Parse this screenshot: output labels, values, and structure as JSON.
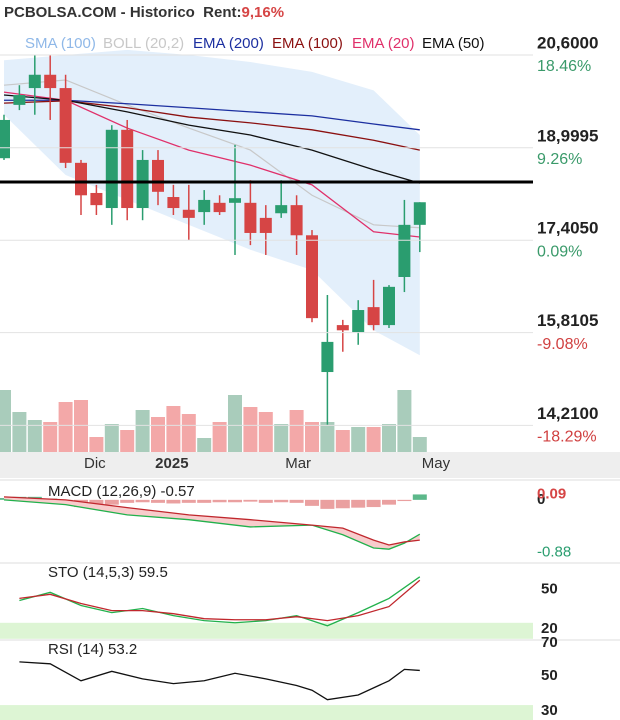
{
  "chart_data": [
    {
      "type": "candlestick",
      "title": "PCBOLSA.COM - Historico  Rent:",
      "subtitle": "9,16%",
      "xticks": [
        {
          "value": 5.9,
          "label": "Dic"
        },
        {
          "value": 10.9,
          "label": "2025"
        },
        {
          "value": 19.1,
          "label": "Mar"
        },
        {
          "value": 28.05,
          "label": "May"
        }
      ],
      "ylim": [
        13.75,
        21.55
      ],
      "yticks": [
        {
          "value": 20.6,
          "label": "20,6000"
        },
        {
          "value": 18.9995,
          "label": "18,9995"
        },
        {
          "value": 17.405,
          "label": "17,4050"
        },
        {
          "value": 15.8105,
          "label": "15,8105"
        },
        {
          "value": 14.21,
          "label": "14,2100"
        }
      ],
      "y2lim": [
        -20.93,
        23.92
      ],
      "y2ticks": [
        {
          "value": 18.46,
          "label": "18.46%"
        },
        {
          "value": 9.26,
          "label": "9.26%"
        },
        {
          "value": 0.09,
          "label": "0.09%"
        },
        {
          "value": -9.08,
          "label": "-9.08%"
        },
        {
          "value": -18.29,
          "label": "-18.29%"
        }
      ],
      "open": [
        18.82,
        19.74,
        20.03,
        20.26,
        20.03,
        18.74,
        18.22,
        17.96,
        19.31,
        17.96,
        18.79,
        18.15,
        17.93,
        17.89,
        18.05,
        18.05,
        18.05,
        17.79,
        17.87,
        18.01,
        17.49,
        15.13,
        15.94,
        15.82,
        16.25,
        15.94,
        16.77,
        17.67
      ],
      "high": [
        19.57,
        20.08,
        20.6,
        20.6,
        20.26,
        18.79,
        18.36,
        19.39,
        19.48,
        18.96,
        18.96,
        18.36,
        18.36,
        18.27,
        18.18,
        19.05,
        18.44,
        18.01,
        18.44,
        18.18,
        17.58,
        16.46,
        16.03,
        16.37,
        16.72,
        16.63,
        18.1,
        18.06
      ],
      "low": [
        18.79,
        19.65,
        19.57,
        19.48,
        18.65,
        17.84,
        17.84,
        17.67,
        17.75,
        17.75,
        18.01,
        17.84,
        17.41,
        17.67,
        17.84,
        17.15,
        17.32,
        17.15,
        17.79,
        17.15,
        15.99,
        14.22,
        15.48,
        15.6,
        15.85,
        15.89,
        16.51,
        17.2
      ],
      "close": [
        19.48,
        19.91,
        20.26,
        20.03,
        18.74,
        18.18,
        18.01,
        19.31,
        17.96,
        18.79,
        18.24,
        17.96,
        17.79,
        18.1,
        17.89,
        18.13,
        17.53,
        17.53,
        18.01,
        17.49,
        16.06,
        15.65,
        15.85,
        16.2,
        15.94,
        16.6,
        17.67,
        18.06
      ],
      "up_color": "#2a9d6f",
      "down_color": "#d64545",
      "volume": {
        "values": [
          62,
          40,
          32,
          30,
          50,
          52,
          15,
          28,
          22,
          42,
          35,
          46,
          38,
          14,
          30,
          57,
          45,
          40,
          28,
          42,
          30,
          30,
          22,
          25,
          25,
          28,
          62,
          15
        ],
        "ylim": [
          0,
          100
        ],
        "up_color": "#a9ccbb",
        "down_color": "#f3a8a8"
      },
      "hline": 18.41,
      "hline_color": "#000000",
      "band": {
        "name": "BOLL (20,2)",
        "color": "#c8c8c8",
        "fill": "#e3effb",
        "x": [
          0,
          4,
          8,
          12,
          16,
          20,
          24,
          27
        ],
        "upper": [
          20.51,
          20.6,
          20.69,
          20.6,
          20.48,
          20.31,
          19.99,
          19.22
        ],
        "middle": [
          20.08,
          20.17,
          19.74,
          19.34,
          18.96,
          18.18,
          17.67,
          17.62
        ],
        "lower": [
          19.57,
          18.53,
          18.1,
          17.67,
          17.24,
          16.89,
          15.85,
          15.42
        ]
      },
      "legend_only": [
        {
          "name": "SMA (100)",
          "color": "#8fb8e8"
        }
      ],
      "series": [
        {
          "name": "EMA (200)",
          "color": "#1c2fa0",
          "x": [
            0,
            4,
            8,
            12,
            16,
            20,
            24,
            27
          ],
          "values": [
            19.82,
            19.82,
            19.76,
            19.69,
            19.62,
            19.55,
            19.41,
            19.31
          ]
        },
        {
          "name": "EMA (100)",
          "color": "#8b1010",
          "x": [
            0,
            4,
            8,
            12,
            16,
            20,
            24,
            27
          ],
          "values": [
            19.77,
            19.81,
            19.69,
            19.53,
            19.43,
            19.31,
            19.13,
            18.96
          ]
        },
        {
          "name": "EMA (20)",
          "color": "#e0306a",
          "x": [
            0,
            4,
            8,
            12,
            16,
            20,
            24,
            27
          ],
          "values": [
            19.96,
            19.82,
            19.34,
            18.96,
            18.7,
            18.36,
            17.55,
            17.46
          ]
        },
        {
          "name": "EMA (50)",
          "color": "#111111",
          "x": [
            0,
            4,
            8,
            12,
            16,
            20,
            24,
            27
          ],
          "values": [
            19.91,
            19.82,
            19.62,
            19.39,
            19.22,
            18.96,
            18.62,
            18.39
          ]
        }
      ]
    },
    {
      "type": "macd",
      "title": "MACD (12,26,9) -0.57",
      "ylim": [
        -1.05,
        0.33
      ],
      "yticks": [
        0,
        -0.88
      ],
      "current_value": 0.09,
      "histogram": [
        0.03,
        0.05,
        0.05,
        0.02,
        -0.05,
        -0.12,
        -0.1,
        -0.08,
        -0.05,
        -0.04,
        -0.05,
        -0.06,
        -0.05,
        -0.05,
        -0.04,
        -0.04,
        -0.03,
        -0.05,
        -0.04,
        -0.05,
        -0.1,
        -0.15,
        -0.14,
        -0.13,
        -0.12,
        -0.08,
        -0.02,
        0.09
      ],
      "up_color": "#5cb88a",
      "down_color": "#eaa0a0",
      "fill": "#f8cccc",
      "series": [
        {
          "color": "#22b14c",
          "x": [
            0,
            4,
            8,
            12,
            16,
            20,
            22,
            24,
            25,
            26,
            27
          ],
          "values": [
            0,
            -0.08,
            -0.25,
            -0.33,
            -0.45,
            -0.42,
            -0.58,
            -0.8,
            -0.82,
            -0.72,
            -0.57
          ]
        },
        {
          "color": "#c0272d",
          "x": [
            0,
            4,
            8,
            12,
            16,
            20,
            22,
            24,
            25,
            26,
            27
          ],
          "values": [
            0.05,
            0,
            -0.13,
            -0.25,
            -0.33,
            -0.42,
            -0.47,
            -0.67,
            -0.75,
            -0.7,
            -0.67
          ]
        }
      ]
    },
    {
      "type": "oscillator",
      "title": "STO (14,5,3) 59.5",
      "ylim": [
        11.5,
        70
      ],
      "yticks": [
        50,
        20
      ],
      "zone": 20,
      "zone_color": "#ddf5d4",
      "series": [
        {
          "color": "#22b14c",
          "x": [
            1,
            3,
            5,
            7,
            9,
            11,
            13,
            15,
            17,
            19,
            21,
            23,
            25,
            27
          ],
          "values": [
            41.5,
            47.7,
            37.7,
            32.3,
            35.4,
            30,
            26.2,
            24.6,
            26.2,
            30,
            22.3,
            32.3,
            43.1,
            59.5
          ]
        },
        {
          "color": "#c0272d",
          "x": [
            1,
            3,
            5,
            7,
            9,
            11,
            13,
            15,
            17,
            19,
            21,
            23,
            25,
            27
          ],
          "values": [
            43.1,
            46.2,
            39.2,
            33.8,
            33.8,
            31.5,
            27.7,
            26.9,
            26.9,
            29.2,
            26.2,
            30,
            36.9,
            56.9
          ]
        }
      ]
    },
    {
      "type": "oscillator",
      "title": "RSI (14) 53.2",
      "ylim": [
        24.9,
        70.6
      ],
      "yticks": [
        70,
        50,
        30
      ],
      "zone": 30,
      "zone_color": "#ddf5d4",
      "series": [
        {
          "color": "#111111",
          "x": [
            1,
            3,
            5,
            7,
            9,
            11,
            13,
            15,
            17,
            19,
            20,
            21,
            23,
            25,
            26,
            27
          ],
          "values": [
            58.1,
            57,
            47.3,
            52.7,
            48.4,
            45.7,
            47.3,
            51.6,
            48.4,
            44.6,
            41.9,
            36.5,
            39.2,
            47.3,
            53.8,
            53.2
          ]
        }
      ]
    }
  ]
}
